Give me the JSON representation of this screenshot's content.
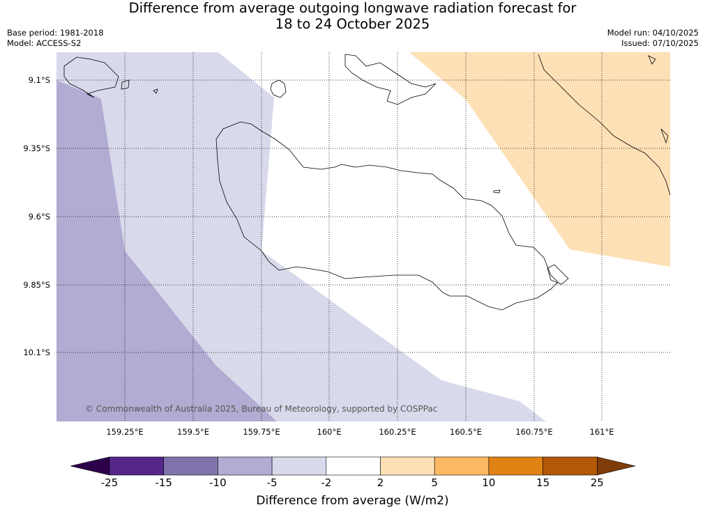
{
  "title_line1": "Difference from average outgoing longwave radiation forecast for",
  "title_line2": "18 to 24 October 2025",
  "base_period": "Base period: 1981-2018",
  "model": "Model: ACCESS-S2",
  "model_run": "Model run: 04/10/2025",
  "issued": "Issued: 07/10/2025",
  "credit": "© Commonwealth of Australia 2025, Bureau of Meteorology, supported by COSPPac",
  "lat_ticks": [
    "9.1°S",
    "9.35°S",
    "9.6°S",
    "9.85°S",
    "10.1°S"
  ],
  "lon_ticks": [
    "159.25°E",
    "159.5°E",
    "159.75°E",
    "160°E",
    "160.25°E",
    "160.5°E",
    "160.75°E",
    "161°E"
  ],
  "colorbar": {
    "title": "Difference from average (W/m2)",
    "labels": [
      "-25",
      "-15",
      "-10",
      "-5",
      "-2",
      "2",
      "5",
      "10",
      "15",
      "25"
    ],
    "colors": [
      "#542788",
      "#8073ac",
      "#b2abd2",
      "#d8daeb",
      "#ffffff",
      "#fee0b6",
      "#fdb863",
      "#e08214",
      "#b35806"
    ],
    "under_color": "#2d004b",
    "over_color": "#7f3b08"
  },
  "fields": {
    "band_minus10_minus5": "#b2abd2",
    "band_minus5_minus2": "#d8daeb",
    "band_2_5": "#fee0b6"
  }
}
